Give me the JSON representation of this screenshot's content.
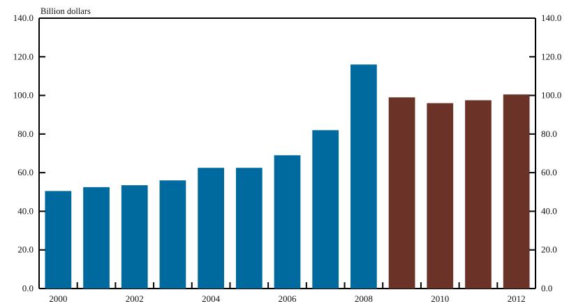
{
  "chart_data": {
    "type": "bar",
    "title": "",
    "unit_label": "Billion dollars",
    "xlabel": "",
    "ylabel": "",
    "categories": [
      "2000",
      "2001",
      "2002",
      "2003",
      "2004",
      "2005",
      "2006",
      "2007",
      "2008",
      "2009",
      "2010",
      "2011",
      "2012"
    ],
    "values": [
      50.5,
      52.5,
      53.5,
      56.0,
      62.5,
      62.5,
      69.0,
      82.0,
      116.0,
      99.0,
      96.0,
      97.5,
      100.5
    ],
    "bar_colors": [
      "#006a9e",
      "#006a9e",
      "#006a9e",
      "#006a9e",
      "#006a9e",
      "#006a9e",
      "#006a9e",
      "#006a9e",
      "#006a9e",
      "#6b3328",
      "#6b3328",
      "#6b3328",
      "#6b3328"
    ],
    "x_tick_labels": [
      "2000",
      "2002",
      "2004",
      "2006",
      "2008",
      "2010",
      "2012"
    ],
    "y_ticks": [
      "0.0",
      "20.0",
      "40.0",
      "60.0",
      "80.0",
      "100.0",
      "120.0",
      "140.0"
    ],
    "ylim": [
      0,
      140
    ],
    "grid": false,
    "legend": "none"
  }
}
